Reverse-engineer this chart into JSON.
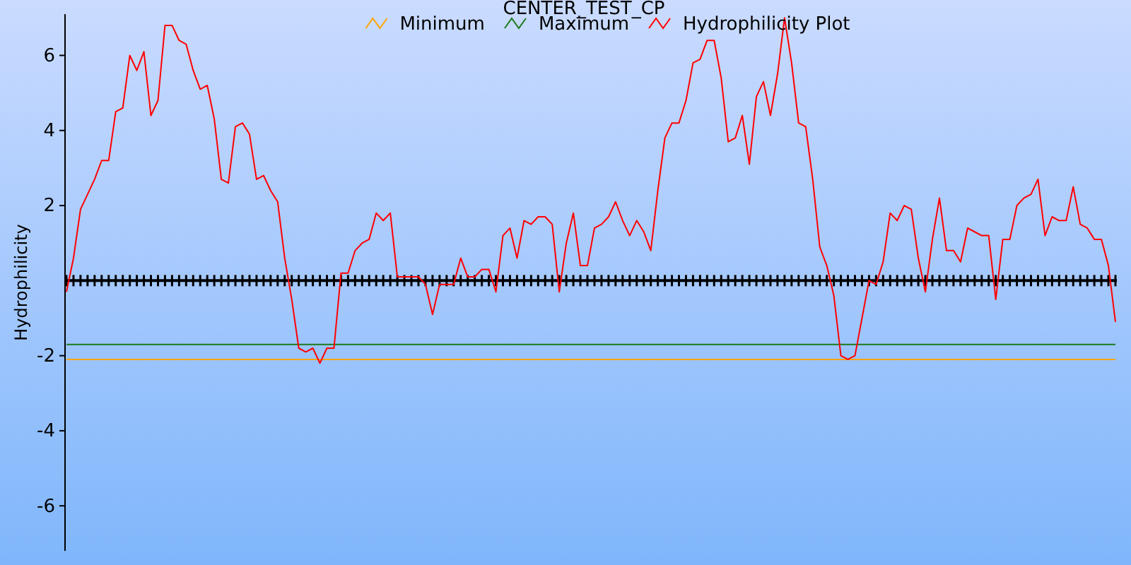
{
  "chart_data": {
    "type": "line",
    "title": "CENTER_TEST_CP",
    "ylabel": "Hydrophilicity",
    "categories": [
      null,
      null,
      null,
      null,
      null,
      null,
      null,
      null,
      null,
      null,
      null,
      null,
      null,
      null,
      null,
      null,
      null,
      null,
      null,
      null,
      null,
      null,
      null,
      null,
      null,
      null,
      null,
      null,
      null,
      null,
      null,
      null,
      null,
      null,
      null,
      null,
      null,
      null,
      null,
      null,
      null,
      null,
      null,
      null,
      null,
      null,
      null,
      null,
      null,
      null,
      null,
      null,
      null,
      null,
      null,
      null,
      null,
      null,
      null,
      null,
      null,
      null,
      null,
      null,
      null,
      null,
      null,
      null,
      null,
      null,
      null,
      null,
      null,
      null,
      null,
      null,
      null,
      null,
      null,
      null,
      null,
      null,
      null,
      null,
      null,
      null,
      null,
      null,
      null,
      null,
      null,
      null,
      null,
      null,
      null,
      null,
      null,
      null,
      null,
      null,
      null,
      null,
      null,
      null,
      null,
      null,
      null,
      null,
      null,
      null,
      null,
      null,
      null,
      null,
      null,
      null,
      null,
      null,
      null,
      null,
      null,
      null,
      null,
      null,
      null,
      null,
      null,
      null,
      null,
      null,
      null,
      null,
      null,
      null,
      null,
      null,
      null,
      null,
      null,
      null,
      null,
      null,
      null,
      null,
      null,
      null,
      null,
      null,
      null,
      null
    ],
    "series": [
      {
        "name": "Minimum",
        "color": "#ffa500",
        "values": [
          -2.1,
          -2.1,
          -2.1,
          -2.1,
          -2.1,
          -2.1,
          -2.1,
          -2.1,
          -2.1,
          -2.1,
          -2.1,
          -2.1,
          -2.1,
          -2.1,
          -2.1,
          -2.1,
          -2.1,
          -2.1,
          -2.1,
          -2.1,
          -2.1,
          -2.1,
          -2.1,
          -2.1,
          -2.1,
          -2.1,
          -2.1,
          -2.1,
          -2.1,
          -2.1,
          -2.1,
          -2.1,
          -2.1,
          -2.1,
          -2.1,
          -2.1,
          -2.1,
          -2.1,
          -2.1,
          -2.1,
          -2.1,
          -2.1,
          -2.1,
          -2.1,
          -2.1,
          -2.1,
          -2.1,
          -2.1,
          -2.1,
          -2.1,
          -2.1,
          -2.1,
          -2.1,
          -2.1,
          -2.1,
          -2.1,
          -2.1,
          -2.1,
          -2.1,
          -2.1,
          -2.1,
          -2.1,
          -2.1,
          -2.1,
          -2.1,
          -2.1,
          -2.1,
          -2.1,
          -2.1,
          -2.1,
          -2.1,
          -2.1,
          -2.1,
          -2.1,
          -2.1,
          -2.1,
          -2.1,
          -2.1,
          -2.1,
          -2.1,
          -2.1,
          -2.1,
          -2.1,
          -2.1,
          -2.1,
          -2.1,
          -2.1,
          -2.1,
          -2.1,
          -2.1,
          -2.1,
          -2.1,
          -2.1,
          -2.1,
          -2.1,
          -2.1,
          -2.1,
          -2.1,
          -2.1,
          -2.1,
          -2.1,
          -2.1,
          -2.1,
          -2.1,
          -2.1,
          -2.1,
          -2.1,
          -2.1,
          -2.1,
          -2.1,
          -2.1,
          -2.1,
          -2.1,
          -2.1,
          -2.1,
          -2.1,
          -2.1,
          -2.1,
          -2.1,
          -2.1,
          -2.1,
          -2.1,
          -2.1,
          -2.1,
          -2.1,
          -2.1,
          -2.1,
          -2.1,
          -2.1,
          -2.1,
          -2.1,
          -2.1,
          -2.1,
          -2.1,
          -2.1,
          -2.1,
          -2.1,
          -2.1,
          -2.1,
          -2.1,
          -2.1,
          -2.1,
          -2.1,
          -2.1,
          -2.1,
          -2.1,
          -2.1,
          -2.1,
          -2.1,
          -2.1
        ]
      },
      {
        "name": "Maximum",
        "color": "#1a7a1a",
        "values": [
          -1.7,
          -1.7,
          -1.7,
          -1.7,
          -1.7,
          -1.7,
          -1.7,
          -1.7,
          -1.7,
          -1.7,
          -1.7,
          -1.7,
          -1.7,
          -1.7,
          -1.7,
          -1.7,
          -1.7,
          -1.7,
          -1.7,
          -1.7,
          -1.7,
          -1.7,
          -1.7,
          -1.7,
          -1.7,
          -1.7,
          -1.7,
          -1.7,
          -1.7,
          -1.7,
          -1.7,
          -1.7,
          -1.7,
          -1.7,
          -1.7,
          -1.7,
          -1.7,
          -1.7,
          -1.7,
          -1.7,
          -1.7,
          -1.7,
          -1.7,
          -1.7,
          -1.7,
          -1.7,
          -1.7,
          -1.7,
          -1.7,
          -1.7,
          -1.7,
          -1.7,
          -1.7,
          -1.7,
          -1.7,
          -1.7,
          -1.7,
          -1.7,
          -1.7,
          -1.7,
          -1.7,
          -1.7,
          -1.7,
          -1.7,
          -1.7,
          -1.7,
          -1.7,
          -1.7,
          -1.7,
          -1.7,
          -1.7,
          -1.7,
          -1.7,
          -1.7,
          -1.7,
          -1.7,
          -1.7,
          -1.7,
          -1.7,
          -1.7,
          -1.7,
          -1.7,
          -1.7,
          -1.7,
          -1.7,
          -1.7,
          -1.7,
          -1.7,
          -1.7,
          -1.7,
          -1.7,
          -1.7,
          -1.7,
          -1.7,
          -1.7,
          -1.7,
          -1.7,
          -1.7,
          -1.7,
          -1.7,
          -1.7,
          -1.7,
          -1.7,
          -1.7,
          -1.7,
          -1.7,
          -1.7,
          -1.7,
          -1.7,
          -1.7,
          -1.7,
          -1.7,
          -1.7,
          -1.7,
          -1.7,
          -1.7,
          -1.7,
          -1.7,
          -1.7,
          -1.7,
          -1.7,
          -1.7,
          -1.7,
          -1.7,
          -1.7,
          -1.7,
          -1.7,
          -1.7,
          -1.7,
          -1.7,
          -1.7,
          -1.7,
          -1.7,
          -1.7,
          -1.7,
          -1.7,
          -1.7,
          -1.7,
          -1.7,
          -1.7,
          -1.7,
          -1.7,
          -1.7,
          -1.7,
          -1.7,
          -1.7,
          -1.7,
          -1.7,
          -1.7,
          -1.7
        ]
      },
      {
        "name": "Hydrophilicity Plot",
        "color": "#ff0000",
        "values": [
          -0.3,
          0.6,
          1.9,
          2.3,
          2.7,
          3.2,
          3.2,
          4.5,
          4.6,
          6.0,
          5.6,
          6.1,
          4.4,
          4.8,
          6.8,
          6.8,
          6.4,
          6.3,
          5.6,
          5.1,
          5.2,
          4.3,
          2.7,
          2.6,
          4.1,
          4.2,
          3.9,
          2.7,
          2.8,
          2.4,
          2.1,
          0.6,
          -0.5,
          -1.8,
          -1.9,
          -1.8,
          -2.2,
          -1.8,
          -1.8,
          0.2,
          0.2,
          0.8,
          1.0,
          1.1,
          1.8,
          1.6,
          1.8,
          0.1,
          0.1,
          0.1,
          0.1,
          -0.1,
          -0.9,
          -0.1,
          -0.1,
          -0.1,
          0.6,
          0.1,
          0.1,
          0.3,
          0.3,
          -0.3,
          1.2,
          1.4,
          0.6,
          1.6,
          1.5,
          1.7,
          1.7,
          1.5,
          -0.3,
          1.0,
          1.8,
          0.4,
          0.4,
          1.4,
          1.5,
          1.7,
          2.1,
          1.6,
          1.2,
          1.6,
          1.3,
          0.8,
          2.4,
          3.8,
          4.2,
          4.2,
          4.8,
          5.8,
          5.9,
          6.4,
          6.4,
          5.4,
          3.7,
          3.8,
          4.4,
          3.1,
          4.9,
          5.3,
          4.4,
          5.5,
          7.0,
          5.8,
          4.2,
          4.1,
          2.7,
          0.9,
          0.4,
          -0.4,
          -2.0,
          -2.1,
          -2.0,
          -1.0,
          0.0,
          -0.1,
          0.5,
          1.8,
          1.6,
          2.0,
          1.9,
          0.6,
          -0.3,
          1.1,
          2.2,
          0.8,
          0.8,
          0.5,
          1.4,
          1.3,
          1.2,
          1.2,
          -0.5,
          1.1,
          1.1,
          2.0,
          2.2,
          2.3,
          2.7,
          1.2,
          1.7,
          1.6,
          1.6,
          2.5,
          1.5,
          1.4,
          1.1,
          1.1,
          0.4,
          -1.1
        ]
      }
    ],
    "ylim": [
      -7.2,
      7.1
    ],
    "yticks": [
      -6,
      -4,
      -2,
      2,
      4,
      6
    ],
    "tick_labels": "y",
    "legend": "top",
    "line_style": "solid",
    "marker": "none"
  }
}
